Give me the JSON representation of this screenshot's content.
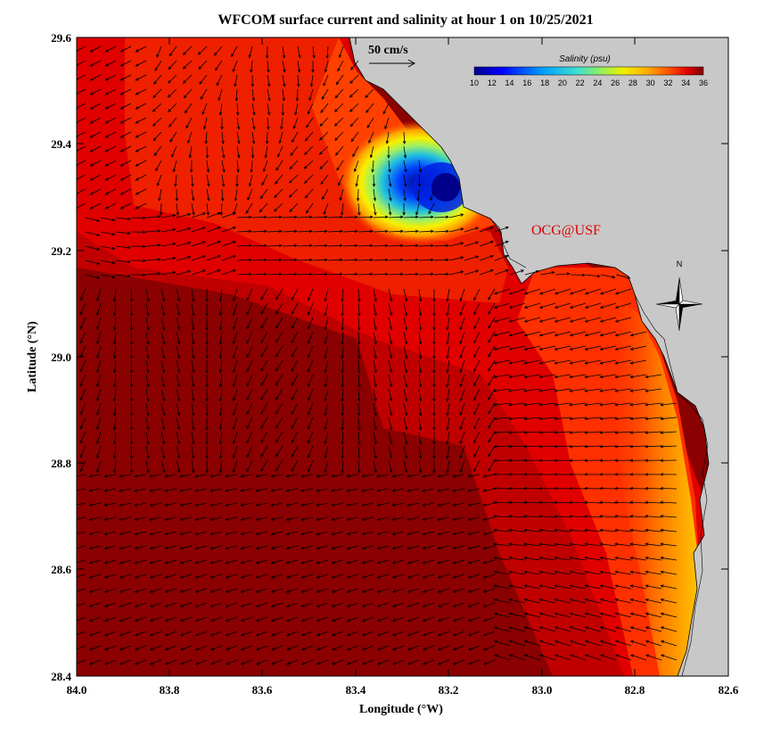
{
  "title": "WFCOM surface current and salinity at hour 1 on 10/25/2021",
  "x_axis": {
    "label": "Longitude (°W)",
    "ticks": [
      "84.0",
      "83.8",
      "83.6",
      "83.4",
      "83.2",
      "83.0",
      "82.8",
      "82.6"
    ]
  },
  "y_axis": {
    "label": "Latitude (°N)",
    "ticks": [
      "29.6",
      "29.4",
      "29.2",
      "29.0",
      "28.8",
      "28.6",
      "28.4"
    ]
  },
  "reference_vector": {
    "label": "50 cm/s"
  },
  "colorbar": {
    "title": "Salinity (psu)",
    "ticks": [
      "10",
      "12",
      "14",
      "16",
      "18",
      "20",
      "22",
      "24",
      "26",
      "28",
      "30",
      "32",
      "34",
      "36"
    ],
    "range": [
      10,
      36
    ]
  },
  "watermark": "OCG@USF",
  "compass": {
    "north_label": "N"
  },
  "colors": {
    "land": "#c8c8c8",
    "high_salinity": "#8b0000",
    "low_salinity": "#00008b",
    "watermark": "#e00000"
  }
}
